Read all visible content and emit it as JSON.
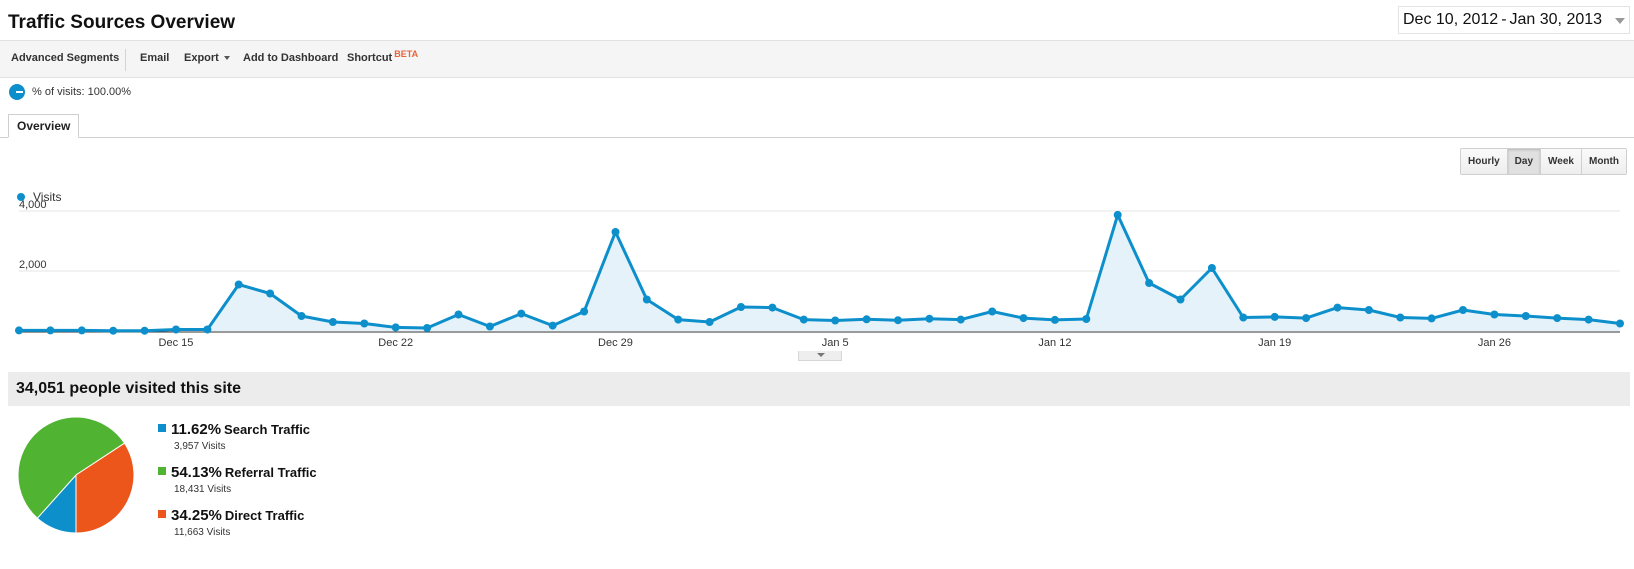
{
  "header": {
    "title": "Traffic Sources Overview",
    "date_start": "Dec 10, 2012",
    "date_separator": "-",
    "date_end": "Jan 30, 2013"
  },
  "toolbar": {
    "advanced_segments": "Advanced Segments",
    "email": "Email",
    "export": "Export",
    "add_to_dashboard": "Add to Dashboard",
    "shortcut": "Shortcut",
    "beta": "BETA"
  },
  "segment": {
    "label": "% of visits: 100.00%"
  },
  "tabs": {
    "overview": "Overview"
  },
  "period_buttons": {
    "hourly": "Hourly",
    "day": "Day",
    "week": "Week",
    "month": "Month",
    "active": "Day"
  },
  "chart_legend": {
    "visits": "Visits"
  },
  "colors": {
    "accent": "#0d8fcc",
    "search": "#0d8fcc",
    "referral": "#50b432",
    "direct": "#ed561b"
  },
  "chart_data": [
    {
      "type": "line",
      "title": "",
      "xlabel": "",
      "ylabel": "",
      "x_range": [
        "Dec 10",
        "Jan 30"
      ],
      "x_tick_labels": [
        "Dec 15",
        "Dec 22",
        "Dec 29",
        "Jan 5",
        "Jan 12",
        "Jan 19",
        "Jan 26"
      ],
      "y_tick_labels": [
        "2,000",
        "4,000"
      ],
      "ylim": [
        0,
        4400
      ],
      "grid": true,
      "series": [
        {
          "name": "Visits",
          "values": [
            20,
            20,
            20,
            10,
            10,
            50,
            50,
            1550,
            1250,
            500,
            300,
            250,
            120,
            100,
            550,
            150,
            580,
            180,
            650,
            3300,
            1050,
            380,
            300,
            800,
            780,
            380,
            350,
            390,
            360,
            410,
            380,
            650,
            430,
            370,
            400,
            3870,
            1600,
            1050,
            2100,
            450,
            470,
            430,
            780,
            700,
            450,
            420,
            700,
            550,
            500,
            430,
            380,
            250
          ]
        }
      ]
    },
    {
      "type": "pie",
      "title": "34,051 people visited this site",
      "slices": [
        {
          "name": "Search Traffic",
          "percent": 11.62,
          "percent_label": "11.62%",
          "visits": 3957,
          "visits_label": "3,957 Visits"
        },
        {
          "name": "Referral Traffic",
          "percent": 54.13,
          "percent_label": "54.13%",
          "visits": 18431,
          "visits_label": "18,431 Visits"
        },
        {
          "name": "Direct Traffic",
          "percent": 34.25,
          "percent_label": "34.25%",
          "visits": 11663,
          "visits_label": "11,663 Visits"
        }
      ]
    }
  ]
}
